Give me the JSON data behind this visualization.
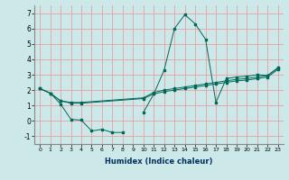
{
  "xlabel": "Humidex (Indice chaleur)",
  "background_color": "#cce8e8",
  "grid_color": "#e8a0a0",
  "line_color": "#006858",
  "series": {
    "line1": {
      "x": [
        0,
        1,
        2,
        3,
        4,
        5,
        6,
        7,
        8,
        9,
        10,
        11,
        12,
        13,
        14,
        15,
        16,
        17,
        18,
        19,
        20,
        21,
        22,
        23
      ],
      "y": [
        2.1,
        1.8,
        1.1,
        0.1,
        0.05,
        -0.65,
        -0.55,
        -0.75,
        -0.75,
        null,
        0.55,
        1.75,
        3.3,
        6.0,
        6.9,
        6.3,
        5.3,
        1.2,
        2.75,
        2.85,
        2.9,
        3.0,
        2.95,
        3.45
      ]
    },
    "line2": {
      "x": [
        0,
        1,
        2,
        3,
        4,
        10,
        11,
        12,
        13,
        14,
        15,
        16,
        17,
        18,
        19,
        20,
        21,
        22,
        23
      ],
      "y": [
        2.1,
        1.8,
        1.3,
        1.2,
        1.2,
        1.5,
        1.85,
        2.0,
        2.1,
        2.2,
        2.3,
        2.4,
        2.5,
        2.6,
        2.7,
        2.75,
        2.85,
        2.95,
        3.45
      ]
    },
    "line3": {
      "x": [
        0,
        1,
        2,
        3,
        4,
        10,
        11,
        12,
        13,
        14,
        15,
        16,
        17,
        18,
        19,
        20,
        21,
        22,
        23
      ],
      "y": [
        2.1,
        1.8,
        1.3,
        1.15,
        1.15,
        1.45,
        1.75,
        1.9,
        2.0,
        2.1,
        2.2,
        2.3,
        2.4,
        2.5,
        2.6,
        2.65,
        2.75,
        2.85,
        3.35
      ]
    }
  },
  "xlim": [
    -0.5,
    23.5
  ],
  "ylim": [
    -1.5,
    7.5
  ],
  "yticks": [
    -1,
    0,
    1,
    2,
    3,
    4,
    5,
    6,
    7
  ],
  "xticks": [
    0,
    1,
    2,
    3,
    4,
    5,
    6,
    7,
    8,
    9,
    10,
    11,
    12,
    13,
    14,
    15,
    16,
    17,
    18,
    19,
    20,
    21,
    22,
    23
  ],
  "xtick_labels": [
    "0",
    "1",
    "2",
    "3",
    "4",
    "5",
    "6",
    "7",
    "8",
    "9",
    "10",
    "11",
    "12",
    "13",
    "14",
    "15",
    "16",
    "17",
    "18",
    "19",
    "20",
    "21",
    "22",
    "23"
  ]
}
